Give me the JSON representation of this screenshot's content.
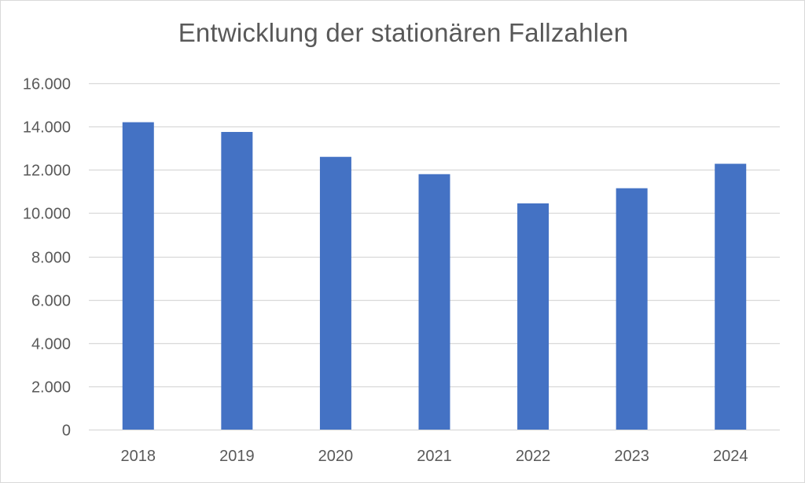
{
  "chart_data": {
    "type": "bar",
    "title": "Entwicklung der stationären Fallzahlen",
    "categories": [
      "2018",
      "2019",
      "2020",
      "2021",
      "2022",
      "2023",
      "2024"
    ],
    "series": [
      {
        "values": [
          14200,
          13750,
          12600,
          11800,
          10450,
          11150,
          12280
        ]
      }
    ],
    "ylim": [
      0,
      16000
    ],
    "yticks": [
      0,
      2000,
      4000,
      6000,
      8000,
      10000,
      12000,
      14000,
      16000
    ],
    "ytick_labels": [
      "0",
      "2.000",
      "4.000",
      "6.000",
      "8.000",
      "10.000",
      "12.000",
      "14.000",
      "16.000"
    ],
    "grid": true,
    "legend": "none",
    "colors": {
      "bar": "#4472c4",
      "grid": "#d9d9d9",
      "text": "#595959"
    }
  }
}
